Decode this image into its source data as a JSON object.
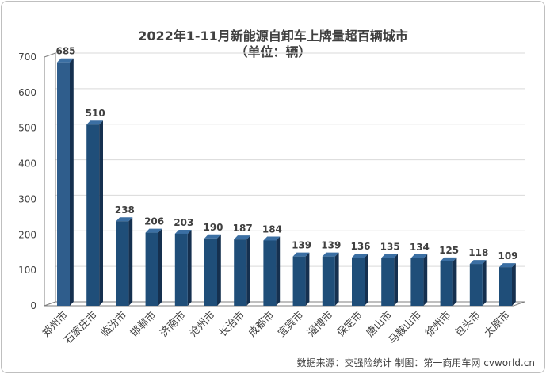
{
  "chart_data": {
    "type": "bar",
    "title": "2022年1-11月新能源自卸车上牌量超百辆城市",
    "subtitle": "（单位：辆）",
    "categories": [
      "郑州市",
      "石家庄市",
      "临汾市",
      "邯郸市",
      "济南市",
      "沧州市",
      "长治市",
      "成都市",
      "宜宾市",
      "淄博市",
      "保定市",
      "唐山市",
      "马鞍山市",
      "徐州市",
      "包头市",
      "太原市"
    ],
    "values": [
      685,
      510,
      238,
      206,
      203,
      190,
      187,
      184,
      139,
      139,
      136,
      135,
      134,
      125,
      118,
      109
    ],
    "y_ticks": [
      "0",
      "100",
      "200",
      "300",
      "400",
      "500",
      "600",
      "700"
    ],
    "ylim": [
      0,
      700
    ],
    "grid": true,
    "legend": "none",
    "colors": {
      "bar": "#1f4e79",
      "bar_highlight": "#2e5f91",
      "bar_side": "#15304f",
      "bar_top": "#3b6fa3",
      "grid": "#d9d9d9",
      "wall": "#7f7f7f",
      "text": "#404040"
    }
  },
  "source_note": "数据来源：交强险统计 制图：第一商用车网 cvworld.cn"
}
